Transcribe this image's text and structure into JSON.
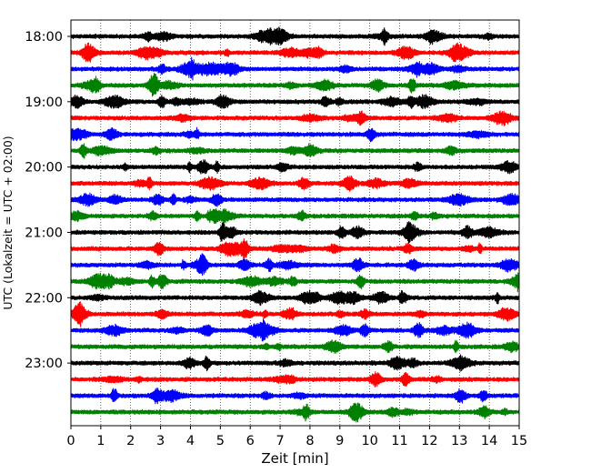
{
  "chart_data": {
    "type": "line",
    "title": "",
    "xlabel": "Zeit  [min]",
    "ylabel": "UTC (Lokalzeit = UTC + 02:00)",
    "xlim": [
      0,
      15
    ],
    "x_ticks": [
      "0",
      "1",
      "2",
      "3",
      "4",
      "5",
      "6",
      "7",
      "8",
      "9",
      "10",
      "11",
      "12",
      "13",
      "14",
      "15"
    ],
    "y_ticks": [
      "18:00",
      "19:00",
      "20:00",
      "21:00",
      "22:00",
      "23:00"
    ],
    "grid": "vertical dotted",
    "trace_interval_min": 15,
    "trace_colors_cycle": [
      "#000000",
      "#ff0000",
      "#0000ff",
      "#008000"
    ],
    "series": [
      {
        "start": "18:00",
        "color": "#000000"
      },
      {
        "start": "18:15",
        "color": "#ff0000"
      },
      {
        "start": "18:30",
        "color": "#0000ff"
      },
      {
        "start": "18:45",
        "color": "#008000"
      },
      {
        "start": "19:00",
        "color": "#000000"
      },
      {
        "start": "19:15",
        "color": "#ff0000"
      },
      {
        "start": "19:30",
        "color": "#0000ff"
      },
      {
        "start": "19:45",
        "color": "#008000"
      },
      {
        "start": "20:00",
        "color": "#000000"
      },
      {
        "start": "20:15",
        "color": "#ff0000"
      },
      {
        "start": "20:30",
        "color": "#0000ff"
      },
      {
        "start": "20:45",
        "color": "#008000"
      },
      {
        "start": "21:00",
        "color": "#000000"
      },
      {
        "start": "21:15",
        "color": "#ff0000"
      },
      {
        "start": "21:30",
        "color": "#0000ff"
      },
      {
        "start": "21:45",
        "color": "#008000"
      },
      {
        "start": "22:00",
        "color": "#000000"
      },
      {
        "start": "22:15",
        "color": "#ff0000"
      },
      {
        "start": "22:30",
        "color": "#0000ff"
      },
      {
        "start": "22:45",
        "color": "#008000"
      },
      {
        "start": "23:00",
        "color": "#000000"
      },
      {
        "start": "23:15",
        "color": "#ff0000"
      },
      {
        "start": "23:30",
        "color": "#0000ff"
      },
      {
        "start": "23:45",
        "color": "#008000"
      }
    ]
  }
}
